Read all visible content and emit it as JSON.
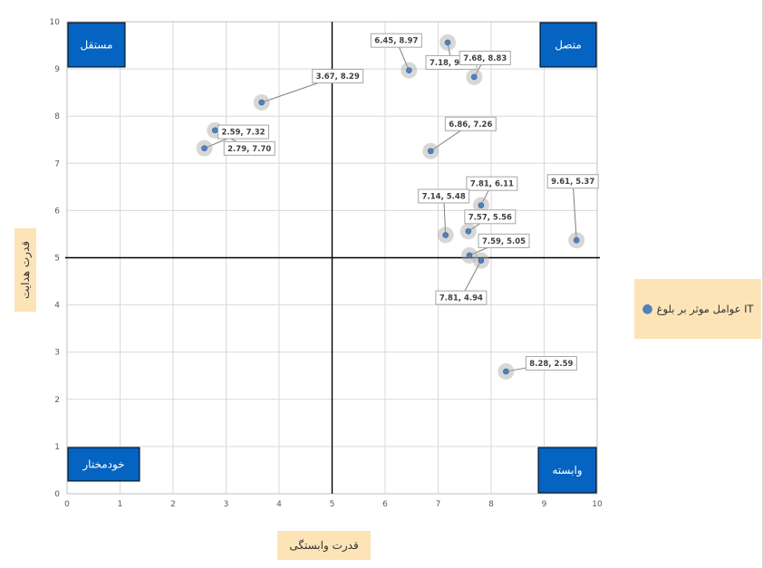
{
  "chart_data": {
    "type": "scatter",
    "xlabel": "قدرت وابستگی",
    "ylabel": "قدرت هدایت",
    "xlim": [
      0,
      10
    ],
    "ylim": [
      0,
      10
    ],
    "x_ticks": [
      "0",
      "1",
      "2",
      "3",
      "4",
      "5",
      "6",
      "7",
      "8",
      "9",
      "10"
    ],
    "y_ticks": [
      "0",
      "1",
      "2",
      "3",
      "4",
      "5",
      "6",
      "7",
      "8",
      "9",
      "10"
    ],
    "grid": true,
    "legend_position": "right",
    "series": [
      {
        "name": "عوامل موثر بر بلوغ IT",
        "points": [
          {
            "x": 6.45,
            "y": 8.97,
            "label": "6.45, 8.97"
          },
          {
            "x": 7.18,
            "y": 9.56,
            "label": "7.18, 9.56"
          },
          {
            "x": 7.68,
            "y": 8.83,
            "label": "7.68, 8.83"
          },
          {
            "x": 3.67,
            "y": 8.29,
            "label": "3.67, 8.29"
          },
          {
            "x": 2.79,
            "y": 7.7,
            "label": "2.79, 7.70"
          },
          {
            "x": 2.59,
            "y": 7.32,
            "label": "2.59, 7.32"
          },
          {
            "x": 6.86,
            "y": 7.26,
            "label": "6.86, 7.26"
          },
          {
            "x": 7.81,
            "y": 6.11,
            "label": "7.81, 6.11"
          },
          {
            "x": 7.14,
            "y": 5.48,
            "label": "7.14, 5.48"
          },
          {
            "x": 7.57,
            "y": 5.56,
            "label": "7.57, 5.56"
          },
          {
            "x": 7.59,
            "y": 5.05,
            "label": "7.59, 5.05"
          },
          {
            "x": 7.81,
            "y": 4.94,
            "label": "7.81, 4.94"
          },
          {
            "x": 9.61,
            "y": 5.37,
            "label": "9.61, 5.37"
          },
          {
            "x": 8.28,
            "y": 2.59,
            "label": "8.28, 2.59"
          }
        ]
      }
    ],
    "quadrants": {
      "top_left": "مستقل",
      "top_right": "متصل",
      "bottom_left": "خودمختار",
      "bottom_right": "وابسته"
    },
    "divider_x": 5,
    "divider_y": 5,
    "colors": {
      "point": "#4f81bd",
      "quadrant_box": "#0563c1",
      "axis_title_bg": "#fce4b6",
      "grid": "#d9d9d9"
    }
  }
}
